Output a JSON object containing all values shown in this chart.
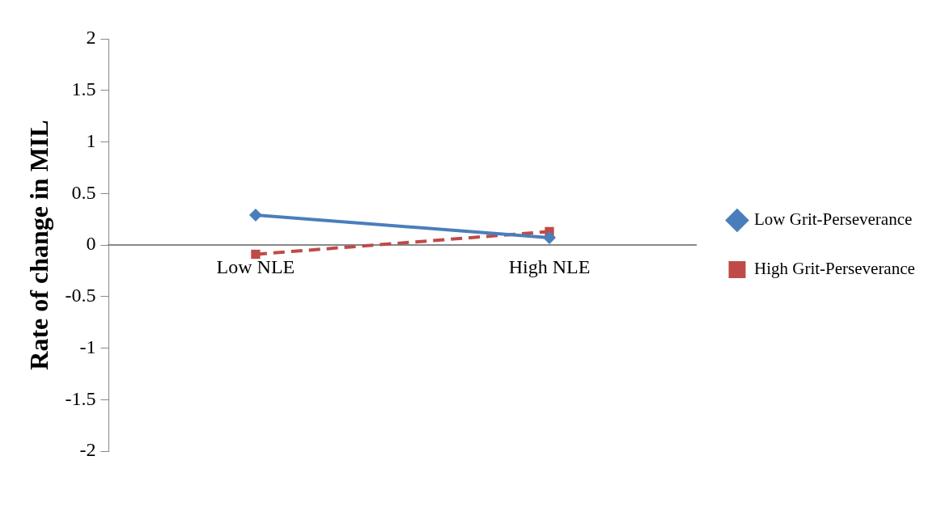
{
  "chart_data": {
    "type": "line",
    "ylabel": "Rate of change in MIL",
    "categories": [
      "Low NLE",
      "High NLE"
    ],
    "series": [
      {
        "name": "Low Grit-Perseverance",
        "color": "#4a7ebb",
        "values": [
          0.29,
          0.07
        ],
        "marker": "diamond",
        "line_style": "solid"
      },
      {
        "name": "High Grit-Perseverance",
        "color": "#be4b48",
        "values": [
          -0.09,
          0.13
        ],
        "marker": "square",
        "line_style": "dashed"
      }
    ],
    "ylim": [
      -2,
      2
    ],
    "yticks": [
      -2,
      -1.5,
      -1,
      -0.5,
      0,
      0.5,
      1,
      1.5,
      2
    ],
    "grid": false,
    "legend": "right"
  }
}
